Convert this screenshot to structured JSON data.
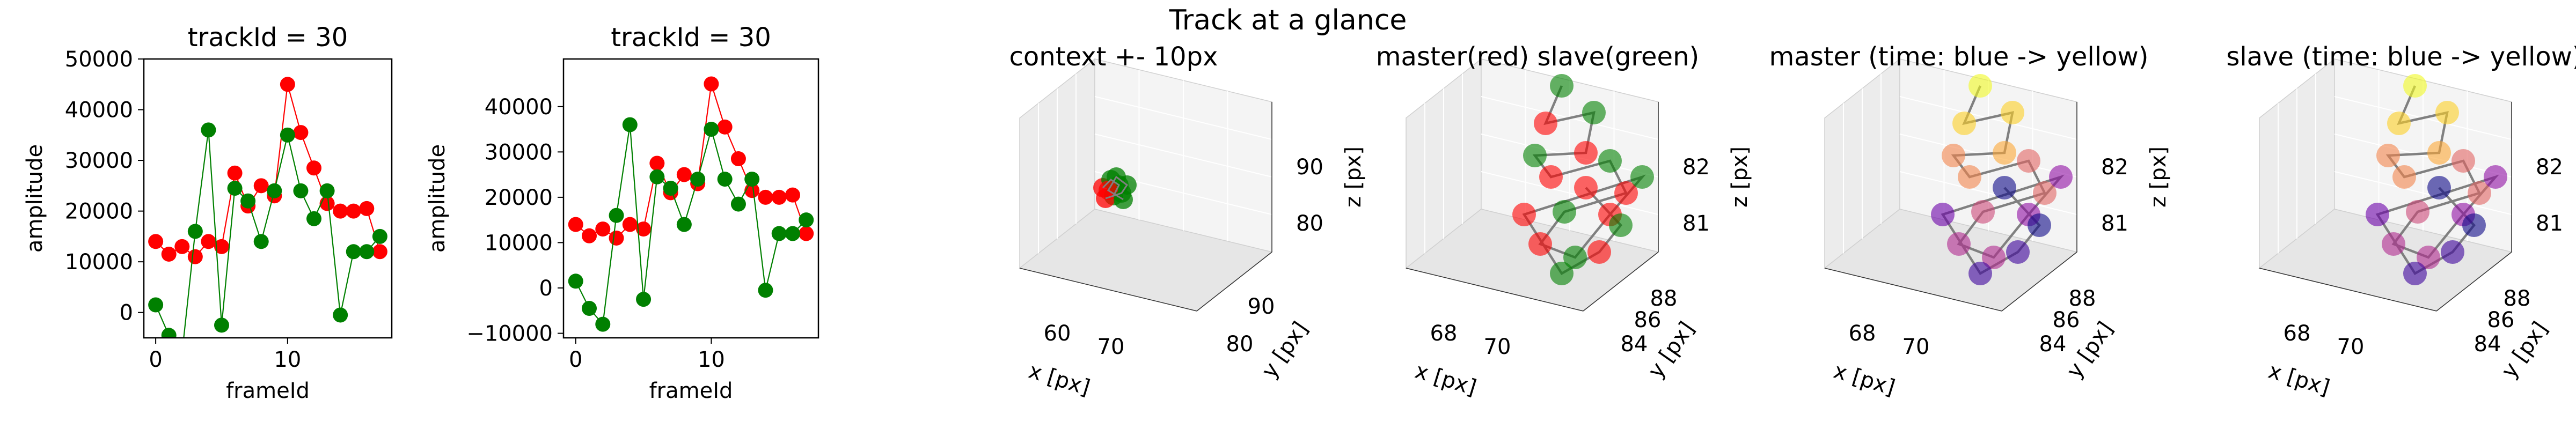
{
  "figure": {
    "suptitle": "Track at a glance"
  },
  "colors": {
    "master": "#ff0000",
    "slave": "#008000",
    "track": "#808080"
  },
  "chart_data": [
    {
      "type": "line",
      "title": "trackId = 30",
      "xlabel": "frameId",
      "ylabel": "amplitude",
      "xlim": [
        -0.9,
        17.9
      ],
      "ylim": [
        -5000,
        50000
      ],
      "xticks": [
        0,
        10
      ],
      "yticks": [
        0,
        10000,
        20000,
        30000,
        40000,
        50000
      ],
      "ytick_labels": [
        "0",
        "10000",
        "20000",
        "30000",
        "40000",
        "50000"
      ],
      "x": [
        0,
        1,
        2,
        3,
        4,
        5,
        6,
        7,
        8,
        9,
        10,
        11,
        12,
        13,
        14,
        15,
        16,
        17
      ],
      "series": [
        {
          "values": [
            14000,
            11500,
            13000,
            11000,
            14000,
            13000,
            27500,
            21000,
            25000,
            23000,
            45000,
            35500,
            28500,
            21500,
            20000,
            20000,
            20500,
            12000
          ],
          "color": "#ff0000"
        },
        {
          "values": [
            1500,
            -4500,
            -8000,
            16000,
            36000,
            -2500,
            24500,
            22000,
            14000,
            24000,
            35000,
            24000,
            18500,
            24000,
            -500,
            12000,
            12000,
            15000
          ],
          "color": "#008000"
        }
      ]
    },
    {
      "type": "line",
      "title": "trackId = 30",
      "xlabel": "frameId",
      "ylabel": "amplitude",
      "xlim": [
        -0.9,
        17.9
      ],
      "ylim": [
        -11000,
        50500
      ],
      "xticks": [
        0,
        10
      ],
      "yticks": [
        -10000,
        0,
        10000,
        20000,
        30000,
        40000
      ],
      "ytick_labels": [
        "−10000",
        "0",
        "10000",
        "20000",
        "30000",
        "40000"
      ],
      "x": [
        0,
        1,
        2,
        3,
        4,
        5,
        6,
        7,
        8,
        9,
        10,
        11,
        12,
        13,
        14,
        15,
        16,
        17
      ],
      "series": [
        {
          "values": [
            14000,
            11500,
            13000,
            11000,
            14000,
            13000,
            27500,
            21000,
            25000,
            23000,
            45000,
            35500,
            28500,
            21500,
            20000,
            20000,
            20500,
            12000
          ],
          "color": "#ff0000"
        },
        {
          "values": [
            1500,
            -4500,
            -8000,
            16000,
            36000,
            -2500,
            24500,
            22000,
            14000,
            24000,
            35000,
            24000,
            18500,
            24000,
            -500,
            12000,
            12000,
            15000
          ],
          "color": "#008000"
        }
      ]
    },
    {
      "type": "scatter3d",
      "title": "context +- 10px",
      "xlabel": "x [px]",
      "ylabel": "y [px]",
      "zlabel": "z [px]",
      "xticks": [
        "60",
        "70"
      ],
      "yticks": [
        "80",
        "90"
      ],
      "zticks": [
        "80",
        "90"
      ]
    },
    {
      "type": "scatter3d",
      "title": "master(red) slave(green)",
      "xlabel": "x [px]",
      "ylabel": "y [px]",
      "zlabel": "z [px]",
      "xticks": [
        "68",
        "70"
      ],
      "yticks": [
        "84",
        "86",
        "88"
      ],
      "zticks": [
        "81",
        "82"
      ]
    },
    {
      "type": "scatter3d",
      "title": "master (time: blue -> yellow)",
      "xlabel": "x [px]",
      "ylabel": "y [px]",
      "zlabel": "z [px]",
      "xticks": [
        "68",
        "70"
      ],
      "yticks": [
        "84",
        "86",
        "88"
      ],
      "zticks": [
        "81",
        "82"
      ]
    },
    {
      "type": "scatter3d",
      "title": "slave (time: blue -> yellow)",
      "xlabel": "x [px]",
      "ylabel": "y [px]",
      "zlabel": "z [px]",
      "xticks": [
        "68",
        "70"
      ],
      "yticks": [
        "84",
        "86",
        "88"
      ],
      "zticks": [
        "81",
        "82"
      ]
    }
  ]
}
